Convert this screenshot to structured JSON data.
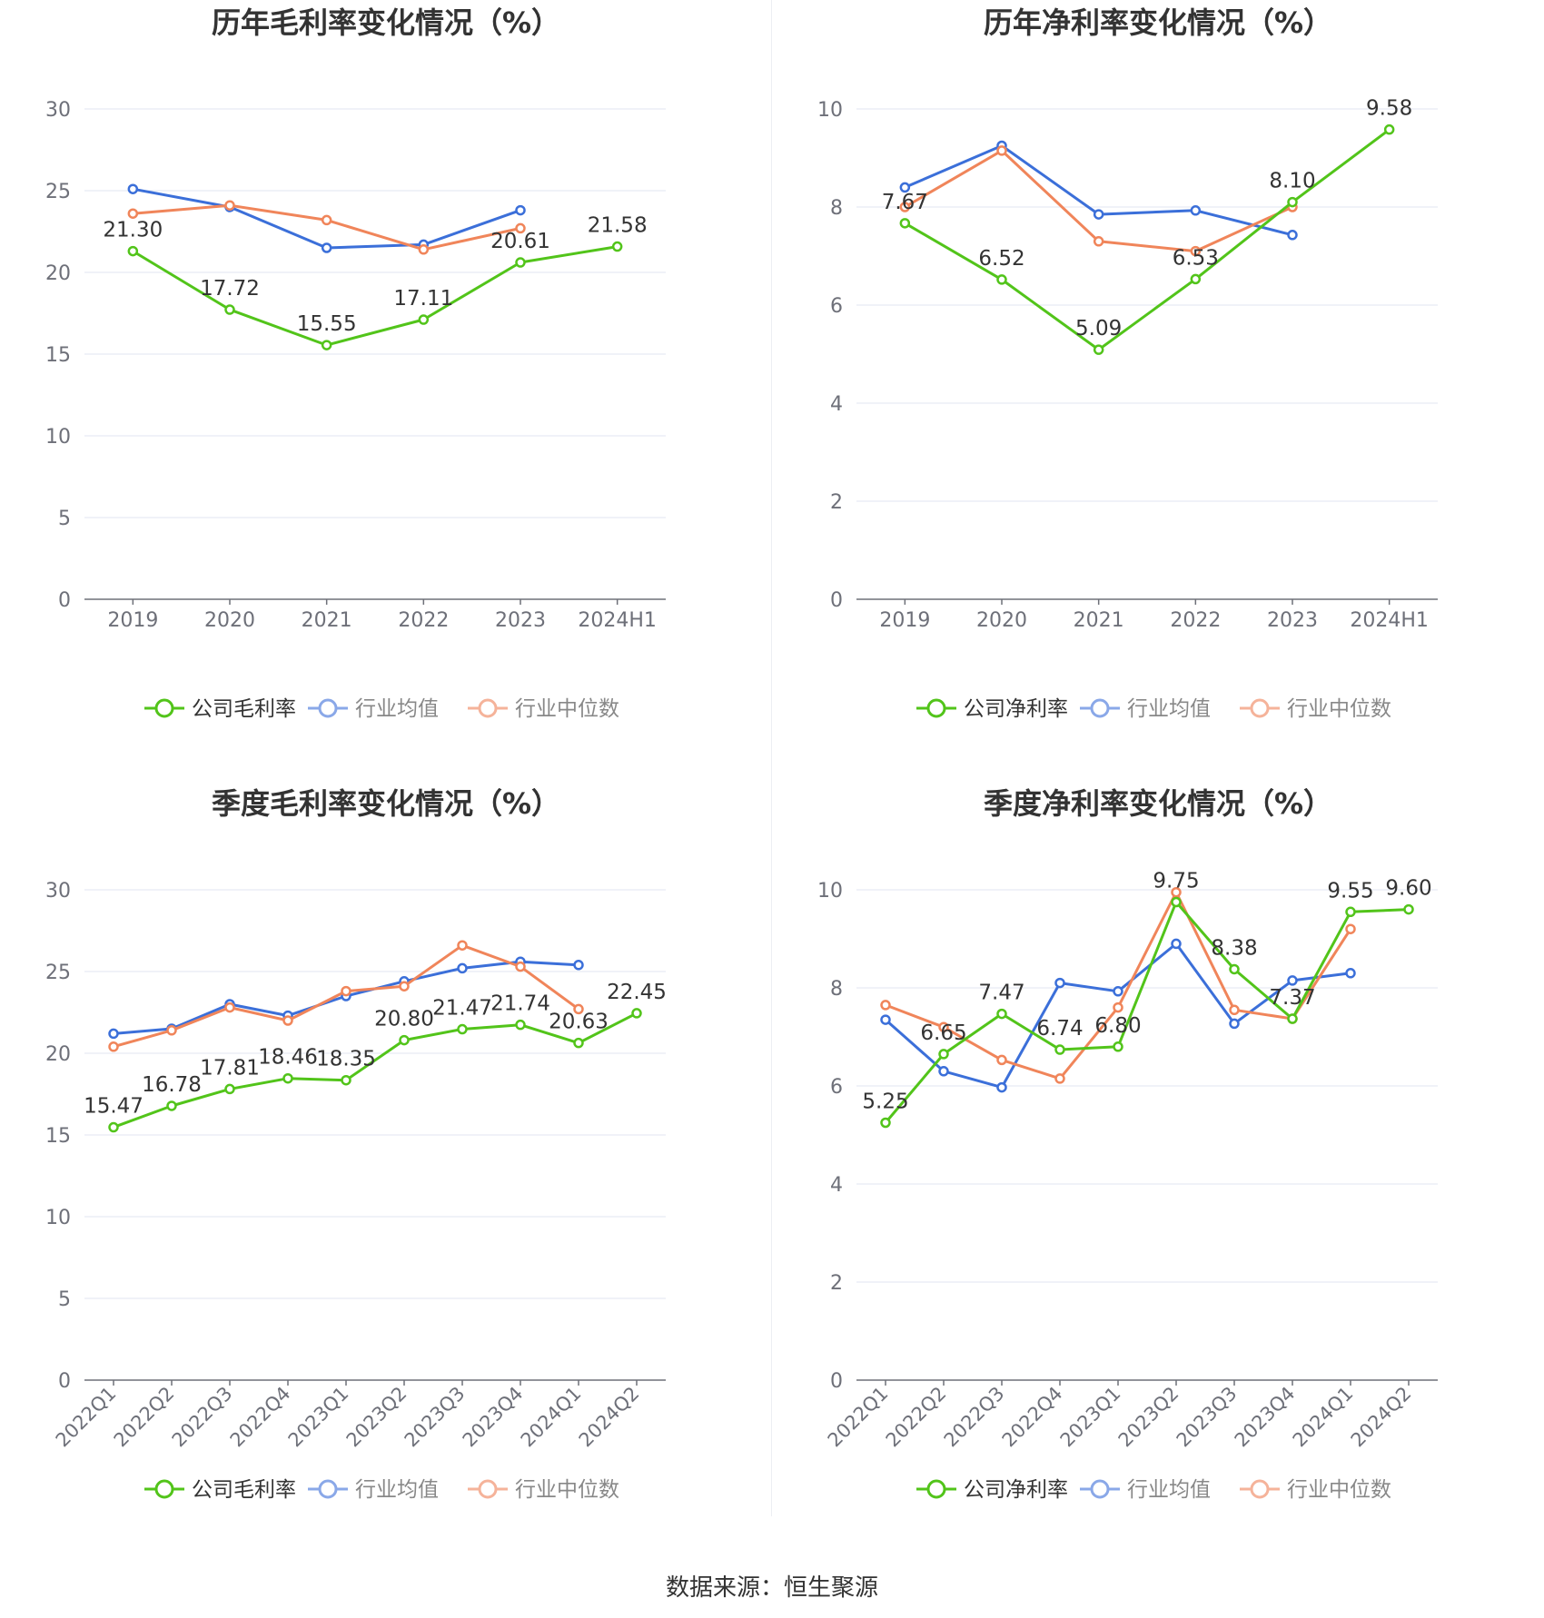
{
  "source_label": "数据来源：恒生聚源",
  "chart_data": [
    {
      "type": "line",
      "title": "历年毛利率变化情况（%）",
      "categories": [
        "2019",
        "2020",
        "2021",
        "2022",
        "2023",
        "2024H1"
      ],
      "ylim": [
        0,
        30
      ],
      "yticks": [
        0,
        5,
        10,
        15,
        20,
        25,
        30
      ],
      "rotate_labels": false,
      "grid": true,
      "legend_position": "bottom",
      "series": [
        {
          "name": "公司毛利率",
          "color": "#52c41a",
          "values": [
            21.3,
            17.72,
            15.55,
            17.11,
            20.61,
            21.58
          ],
          "labels": [
            "21.30",
            "17.72",
            "15.55",
            "17.11",
            "20.61",
            "21.58"
          ]
        },
        {
          "name": "行业均值",
          "color": "#3b6fd9",
          "values": [
            25.1,
            24.0,
            21.5,
            21.7,
            23.8,
            null
          ]
        },
        {
          "name": "行业中位数",
          "color": "#f0855a",
          "values": [
            23.6,
            24.1,
            23.2,
            21.4,
            22.7,
            null
          ]
        }
      ]
    },
    {
      "type": "line",
      "title": "历年净利率变化情况（%）",
      "categories": [
        "2019",
        "2020",
        "2021",
        "2022",
        "2023",
        "2024H1"
      ],
      "ylim": [
        0,
        10
      ],
      "yticks": [
        0,
        2,
        4,
        6,
        8,
        10
      ],
      "rotate_labels": false,
      "grid": true,
      "legend_position": "bottom",
      "series": [
        {
          "name": "公司净利率",
          "color": "#52c41a",
          "values": [
            7.67,
            6.52,
            5.09,
            6.53,
            8.1,
            9.58
          ],
          "labels": [
            "7.67",
            "6.52",
            "5.09",
            "6.53",
            "8.10",
            "9.58"
          ]
        },
        {
          "name": "行业均值",
          "color": "#3b6fd9",
          "values": [
            8.4,
            9.25,
            7.85,
            7.93,
            7.43,
            null
          ]
        },
        {
          "name": "行业中位数",
          "color": "#f0855a",
          "values": [
            8.0,
            9.15,
            7.3,
            7.1,
            8.0,
            null
          ]
        }
      ]
    },
    {
      "type": "line",
      "title": "季度毛利率变化情况（%）",
      "categories": [
        "2022Q1",
        "2022Q2",
        "2022Q3",
        "2022Q4",
        "2023Q1",
        "2023Q2",
        "2023Q3",
        "2023Q4",
        "2024Q1",
        "2024Q2"
      ],
      "ylim": [
        0,
        30
      ],
      "yticks": [
        0,
        5,
        10,
        15,
        20,
        25,
        30
      ],
      "rotate_labels": true,
      "grid": true,
      "legend_position": "bottom",
      "series": [
        {
          "name": "公司毛利率",
          "color": "#52c41a",
          "values": [
            15.47,
            16.78,
            17.81,
            18.46,
            18.35,
            20.8,
            21.47,
            21.74,
            20.63,
            22.45
          ],
          "labels": [
            "15.47",
            "16.78",
            "17.81",
            "18.46",
            "18.35",
            "20.80",
            "21.47",
            "21.74",
            "20.63",
            "22.45"
          ]
        },
        {
          "name": "行业均值",
          "color": "#3b6fd9",
          "values": [
            21.2,
            21.5,
            23.0,
            22.3,
            23.5,
            24.4,
            25.2,
            25.6,
            25.4,
            null
          ]
        },
        {
          "name": "行业中位数",
          "color": "#f0855a",
          "values": [
            20.4,
            21.4,
            22.8,
            22.0,
            23.8,
            24.1,
            26.6,
            25.3,
            22.7,
            null
          ]
        }
      ]
    },
    {
      "type": "line",
      "title": "季度净利率变化情况（%）",
      "categories": [
        "2022Q1",
        "2022Q2",
        "2022Q3",
        "2022Q4",
        "2023Q1",
        "2023Q2",
        "2023Q3",
        "2023Q4",
        "2024Q1",
        "2024Q2"
      ],
      "ylim": [
        0,
        10
      ],
      "yticks": [
        0,
        2,
        4,
        6,
        8,
        10
      ],
      "rotate_labels": true,
      "grid": true,
      "legend_position": "bottom",
      "series": [
        {
          "name": "公司净利率",
          "color": "#52c41a",
          "values": [
            5.25,
            6.65,
            7.47,
            6.74,
            6.8,
            9.75,
            8.38,
            7.37,
            9.55,
            9.6
          ],
          "labels": [
            "5.25",
            "6.65",
            "7.47",
            "6.74",
            "6.80",
            "9.75",
            "8.38",
            "7.37",
            "9.55",
            "9.60"
          ]
        },
        {
          "name": "行业均值",
          "color": "#3b6fd9",
          "values": [
            7.35,
            6.3,
            5.97,
            8.1,
            7.93,
            8.9,
            7.27,
            8.15,
            8.3,
            null
          ]
        },
        {
          "name": "行业中位数",
          "color": "#f0855a",
          "values": [
            7.65,
            7.2,
            6.53,
            6.15,
            7.6,
            9.95,
            7.55,
            7.37,
            9.2,
            null
          ]
        }
      ]
    }
  ]
}
